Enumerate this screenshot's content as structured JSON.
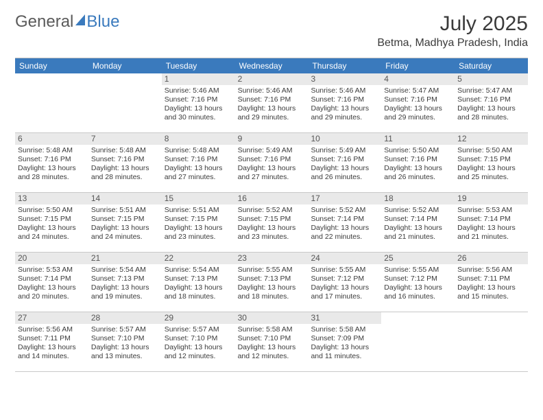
{
  "logo": {
    "part1": "General",
    "part2": "Blue"
  },
  "title": "July 2025",
  "location": "Betma, Madhya Pradesh, India",
  "colors": {
    "header_bg": "#3a7abd",
    "header_text": "#ffffff",
    "daynum_bg": "#e9e9e9",
    "text": "#3a3a3a",
    "border": "#c8c8c8"
  },
  "fonts": {
    "title_pt": 30,
    "location_pt": 16,
    "dayhead_pt": 12,
    "body_pt": 10.5
  },
  "layout": {
    "columns": 7,
    "weeks": 5,
    "first_day_col": 2
  },
  "day_headers": [
    "Sunday",
    "Monday",
    "Tuesday",
    "Wednesday",
    "Thursday",
    "Friday",
    "Saturday"
  ],
  "days": [
    {
      "n": 1,
      "sunrise": "5:46 AM",
      "sunset": "7:16 PM",
      "daylight": "13 hours and 30 minutes."
    },
    {
      "n": 2,
      "sunrise": "5:46 AM",
      "sunset": "7:16 PM",
      "daylight": "13 hours and 29 minutes."
    },
    {
      "n": 3,
      "sunrise": "5:46 AM",
      "sunset": "7:16 PM",
      "daylight": "13 hours and 29 minutes."
    },
    {
      "n": 4,
      "sunrise": "5:47 AM",
      "sunset": "7:16 PM",
      "daylight": "13 hours and 29 minutes."
    },
    {
      "n": 5,
      "sunrise": "5:47 AM",
      "sunset": "7:16 PM",
      "daylight": "13 hours and 28 minutes."
    },
    {
      "n": 6,
      "sunrise": "5:48 AM",
      "sunset": "7:16 PM",
      "daylight": "13 hours and 28 minutes."
    },
    {
      "n": 7,
      "sunrise": "5:48 AM",
      "sunset": "7:16 PM",
      "daylight": "13 hours and 28 minutes."
    },
    {
      "n": 8,
      "sunrise": "5:48 AM",
      "sunset": "7:16 PM",
      "daylight": "13 hours and 27 minutes."
    },
    {
      "n": 9,
      "sunrise": "5:49 AM",
      "sunset": "7:16 PM",
      "daylight": "13 hours and 27 minutes."
    },
    {
      "n": 10,
      "sunrise": "5:49 AM",
      "sunset": "7:16 PM",
      "daylight": "13 hours and 26 minutes."
    },
    {
      "n": 11,
      "sunrise": "5:50 AM",
      "sunset": "7:16 PM",
      "daylight": "13 hours and 26 minutes."
    },
    {
      "n": 12,
      "sunrise": "5:50 AM",
      "sunset": "7:15 PM",
      "daylight": "13 hours and 25 minutes."
    },
    {
      "n": 13,
      "sunrise": "5:50 AM",
      "sunset": "7:15 PM",
      "daylight": "13 hours and 24 minutes."
    },
    {
      "n": 14,
      "sunrise": "5:51 AM",
      "sunset": "7:15 PM",
      "daylight": "13 hours and 24 minutes."
    },
    {
      "n": 15,
      "sunrise": "5:51 AM",
      "sunset": "7:15 PM",
      "daylight": "13 hours and 23 minutes."
    },
    {
      "n": 16,
      "sunrise": "5:52 AM",
      "sunset": "7:15 PM",
      "daylight": "13 hours and 23 minutes."
    },
    {
      "n": 17,
      "sunrise": "5:52 AM",
      "sunset": "7:14 PM",
      "daylight": "13 hours and 22 minutes."
    },
    {
      "n": 18,
      "sunrise": "5:52 AM",
      "sunset": "7:14 PM",
      "daylight": "13 hours and 21 minutes."
    },
    {
      "n": 19,
      "sunrise": "5:53 AM",
      "sunset": "7:14 PM",
      "daylight": "13 hours and 21 minutes."
    },
    {
      "n": 20,
      "sunrise": "5:53 AM",
      "sunset": "7:14 PM",
      "daylight": "13 hours and 20 minutes."
    },
    {
      "n": 21,
      "sunrise": "5:54 AM",
      "sunset": "7:13 PM",
      "daylight": "13 hours and 19 minutes."
    },
    {
      "n": 22,
      "sunrise": "5:54 AM",
      "sunset": "7:13 PM",
      "daylight": "13 hours and 18 minutes."
    },
    {
      "n": 23,
      "sunrise": "5:55 AM",
      "sunset": "7:13 PM",
      "daylight": "13 hours and 18 minutes."
    },
    {
      "n": 24,
      "sunrise": "5:55 AM",
      "sunset": "7:12 PM",
      "daylight": "13 hours and 17 minutes."
    },
    {
      "n": 25,
      "sunrise": "5:55 AM",
      "sunset": "7:12 PM",
      "daylight": "13 hours and 16 minutes."
    },
    {
      "n": 26,
      "sunrise": "5:56 AM",
      "sunset": "7:11 PM",
      "daylight": "13 hours and 15 minutes."
    },
    {
      "n": 27,
      "sunrise": "5:56 AM",
      "sunset": "7:11 PM",
      "daylight": "13 hours and 14 minutes."
    },
    {
      "n": 28,
      "sunrise": "5:57 AM",
      "sunset": "7:10 PM",
      "daylight": "13 hours and 13 minutes."
    },
    {
      "n": 29,
      "sunrise": "5:57 AM",
      "sunset": "7:10 PM",
      "daylight": "13 hours and 12 minutes."
    },
    {
      "n": 30,
      "sunrise": "5:58 AM",
      "sunset": "7:10 PM",
      "daylight": "13 hours and 12 minutes."
    },
    {
      "n": 31,
      "sunrise": "5:58 AM",
      "sunset": "7:09 PM",
      "daylight": "13 hours and 11 minutes."
    }
  ],
  "labels": {
    "sunrise": "Sunrise:",
    "sunset": "Sunset:",
    "daylight": "Daylight:"
  }
}
